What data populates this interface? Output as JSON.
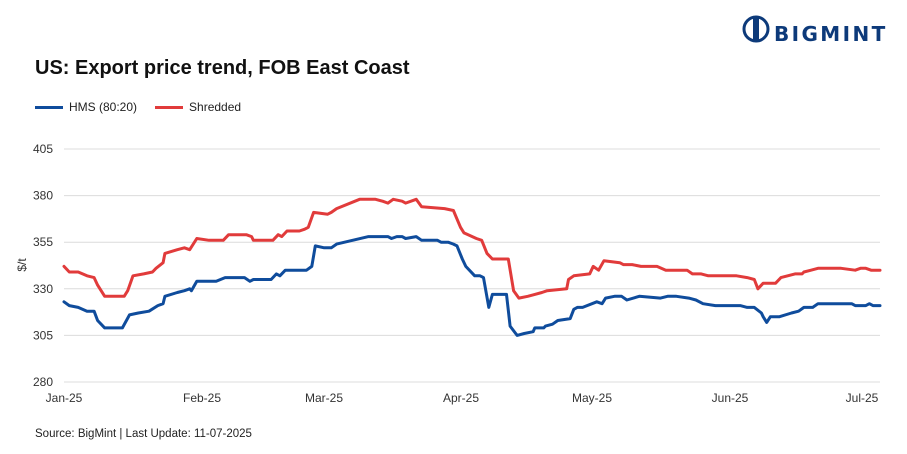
{
  "brand": {
    "name": "BIGMINT",
    "accent": "#0d3a7a"
  },
  "chart_data": {
    "type": "line",
    "title": "US: Export price trend, FOB East Coast",
    "ylabel": "$/t",
    "xlabel": "",
    "ylim": [
      280,
      405
    ],
    "yticks": [
      280,
      305,
      330,
      355,
      380,
      405
    ],
    "xticks": [
      "Jan-25",
      "Feb-25",
      "Mar-25",
      "Apr-25",
      "May-25",
      "Jun-25",
      "Jul-25"
    ],
    "grid": "horizontal",
    "legend": "top-left",
    "series": [
      {
        "name": "HMS (80:20)",
        "color": "#0f4c9c",
        "points": [
          [
            0,
            323
          ],
          [
            3,
            321
          ],
          [
            8,
            320
          ],
          [
            13,
            318
          ],
          [
            17,
            318
          ],
          [
            19,
            313
          ],
          [
            23,
            309
          ],
          [
            27,
            309
          ],
          [
            33,
            309
          ],
          [
            37,
            316
          ],
          [
            42,
            317
          ],
          [
            48,
            318
          ],
          [
            53,
            321
          ],
          [
            56,
            322
          ],
          [
            57,
            326
          ],
          [
            64,
            328
          ],
          [
            68,
            329
          ],
          [
            71,
            330
          ],
          [
            72,
            329
          ],
          [
            75,
            334
          ],
          [
            83,
            334
          ],
          [
            86,
            334
          ],
          [
            91,
            336
          ],
          [
            99,
            336
          ],
          [
            102,
            336
          ],
          [
            105,
            334
          ],
          [
            107,
            335
          ],
          [
            112,
            335
          ],
          [
            114,
            335
          ],
          [
            117,
            335
          ],
          [
            120,
            338
          ],
          [
            122,
            337
          ],
          [
            125,
            340
          ],
          [
            137,
            340
          ],
          [
            140,
            342
          ],
          [
            142,
            353
          ],
          [
            147,
            352
          ],
          [
            151,
            352
          ],
          [
            154,
            354
          ],
          [
            172,
            358
          ],
          [
            183,
            358
          ],
          [
            185,
            357
          ],
          [
            188,
            358
          ],
          [
            191,
            358
          ],
          [
            193,
            357
          ],
          [
            199,
            358
          ],
          [
            202,
            356
          ],
          [
            211,
            356
          ],
          [
            213,
            355
          ],
          [
            217,
            355
          ],
          [
            220,
            354
          ],
          [
            222,
            353
          ],
          [
            225,
            346
          ],
          [
            227,
            342
          ],
          [
            232,
            337
          ],
          [
            235,
            337
          ],
          [
            237,
            336
          ],
          [
            240,
            320
          ],
          [
            242,
            327
          ],
          [
            250,
            327
          ],
          [
            252,
            310
          ],
          [
            256,
            305
          ],
          [
            260,
            306
          ],
          [
            265,
            307
          ],
          [
            266,
            309
          ],
          [
            271,
            309
          ],
          [
            272,
            310
          ],
          [
            276,
            311
          ],
          [
            279,
            313
          ],
          [
            286,
            314
          ],
          [
            288,
            319
          ],
          [
            290,
            320
          ],
          [
            293,
            320
          ],
          [
            301,
            323
          ],
          [
            304,
            322
          ],
          [
            306,
            325
          ],
          [
            311,
            326
          ],
          [
            315,
            326
          ],
          [
            318,
            324
          ],
          [
            325,
            326
          ],
          [
            337,
            325
          ],
          [
            341,
            326
          ],
          [
            346,
            326
          ],
          [
            353,
            325
          ],
          [
            357,
            324
          ],
          [
            361,
            322
          ],
          [
            368,
            321
          ],
          [
            382,
            321
          ],
          [
            386,
            320
          ],
          [
            390,
            320
          ],
          [
            394,
            317
          ],
          [
            395,
            315
          ],
          [
            397,
            312
          ],
          [
            399,
            315
          ],
          [
            404,
            315
          ],
          [
            411,
            317
          ],
          [
            415,
            318
          ],
          [
            418,
            320
          ],
          [
            423,
            320
          ],
          [
            426,
            322
          ],
          [
            445,
            322
          ],
          [
            447,
            321
          ],
          [
            453,
            321
          ],
          [
            455,
            322
          ],
          [
            457,
            321
          ],
          [
            461,
            321
          ]
        ]
      },
      {
        "name": "Shredded",
        "color": "#e13b3b",
        "points": [
          [
            0,
            342
          ],
          [
            3,
            339
          ],
          [
            8,
            339
          ],
          [
            13,
            337
          ],
          [
            17,
            336
          ],
          [
            19,
            332
          ],
          [
            23,
            326
          ],
          [
            27,
            326
          ],
          [
            34,
            326
          ],
          [
            36,
            329
          ],
          [
            39,
            337
          ],
          [
            45,
            338
          ],
          [
            50,
            339
          ],
          [
            52,
            341
          ],
          [
            56,
            344
          ],
          [
            57,
            349
          ],
          [
            64,
            351
          ],
          [
            68,
            352
          ],
          [
            71,
            351
          ],
          [
            75,
            357
          ],
          [
            82,
            356
          ],
          [
            86,
            356
          ],
          [
            90,
            356
          ],
          [
            93,
            359
          ],
          [
            103,
            359
          ],
          [
            106,
            358
          ],
          [
            107,
            356
          ],
          [
            111,
            356
          ],
          [
            118,
            356
          ],
          [
            121,
            359
          ],
          [
            123,
            358
          ],
          [
            126,
            361
          ],
          [
            133,
            361
          ],
          [
            136,
            362
          ],
          [
            138,
            363
          ],
          [
            141,
            371
          ],
          [
            149,
            370
          ],
          [
            151,
            371
          ],
          [
            154,
            373
          ],
          [
            167,
            378
          ],
          [
            176,
            378
          ],
          [
            180,
            377
          ],
          [
            183,
            376
          ],
          [
            186,
            378
          ],
          [
            191,
            377
          ],
          [
            193,
            376
          ],
          [
            199,
            378
          ],
          [
            202,
            374
          ],
          [
            215,
            373
          ],
          [
            220,
            372
          ],
          [
            224,
            363
          ],
          [
            226,
            360
          ],
          [
            233,
            357
          ],
          [
            236,
            356
          ],
          [
            239,
            349
          ],
          [
            242,
            346
          ],
          [
            251,
            346
          ],
          [
            254,
            329
          ],
          [
            257,
            325
          ],
          [
            262,
            326
          ],
          [
            266,
            327
          ],
          [
            270,
            328
          ],
          [
            273,
            329
          ],
          [
            284,
            330
          ],
          [
            285,
            335
          ],
          [
            288,
            337
          ],
          [
            297,
            338
          ],
          [
            299,
            342
          ],
          [
            302,
            340
          ],
          [
            305,
            345
          ],
          [
            314,
            344
          ],
          [
            316,
            343
          ],
          [
            321,
            343
          ],
          [
            326,
            342
          ],
          [
            330,
            342
          ],
          [
            335,
            342
          ],
          [
            340,
            340
          ],
          [
            343,
            340
          ],
          [
            352,
            340
          ],
          [
            355,
            338
          ],
          [
            360,
            338
          ],
          [
            364,
            337
          ],
          [
            380,
            337
          ],
          [
            386,
            336
          ],
          [
            390,
            335
          ],
          [
            392,
            330
          ],
          [
            395,
            333
          ],
          [
            402,
            333
          ],
          [
            405,
            336
          ],
          [
            413,
            338
          ],
          [
            417,
            338
          ],
          [
            418,
            339
          ],
          [
            422,
            340
          ],
          [
            426,
            341
          ],
          [
            439,
            341
          ],
          [
            447,
            340
          ],
          [
            450,
            341
          ],
          [
            453,
            341
          ],
          [
            456,
            340
          ],
          [
            461,
            340
          ]
        ]
      }
    ]
  },
  "source": "Source: BigMint | Last Update: 11-07-2025"
}
